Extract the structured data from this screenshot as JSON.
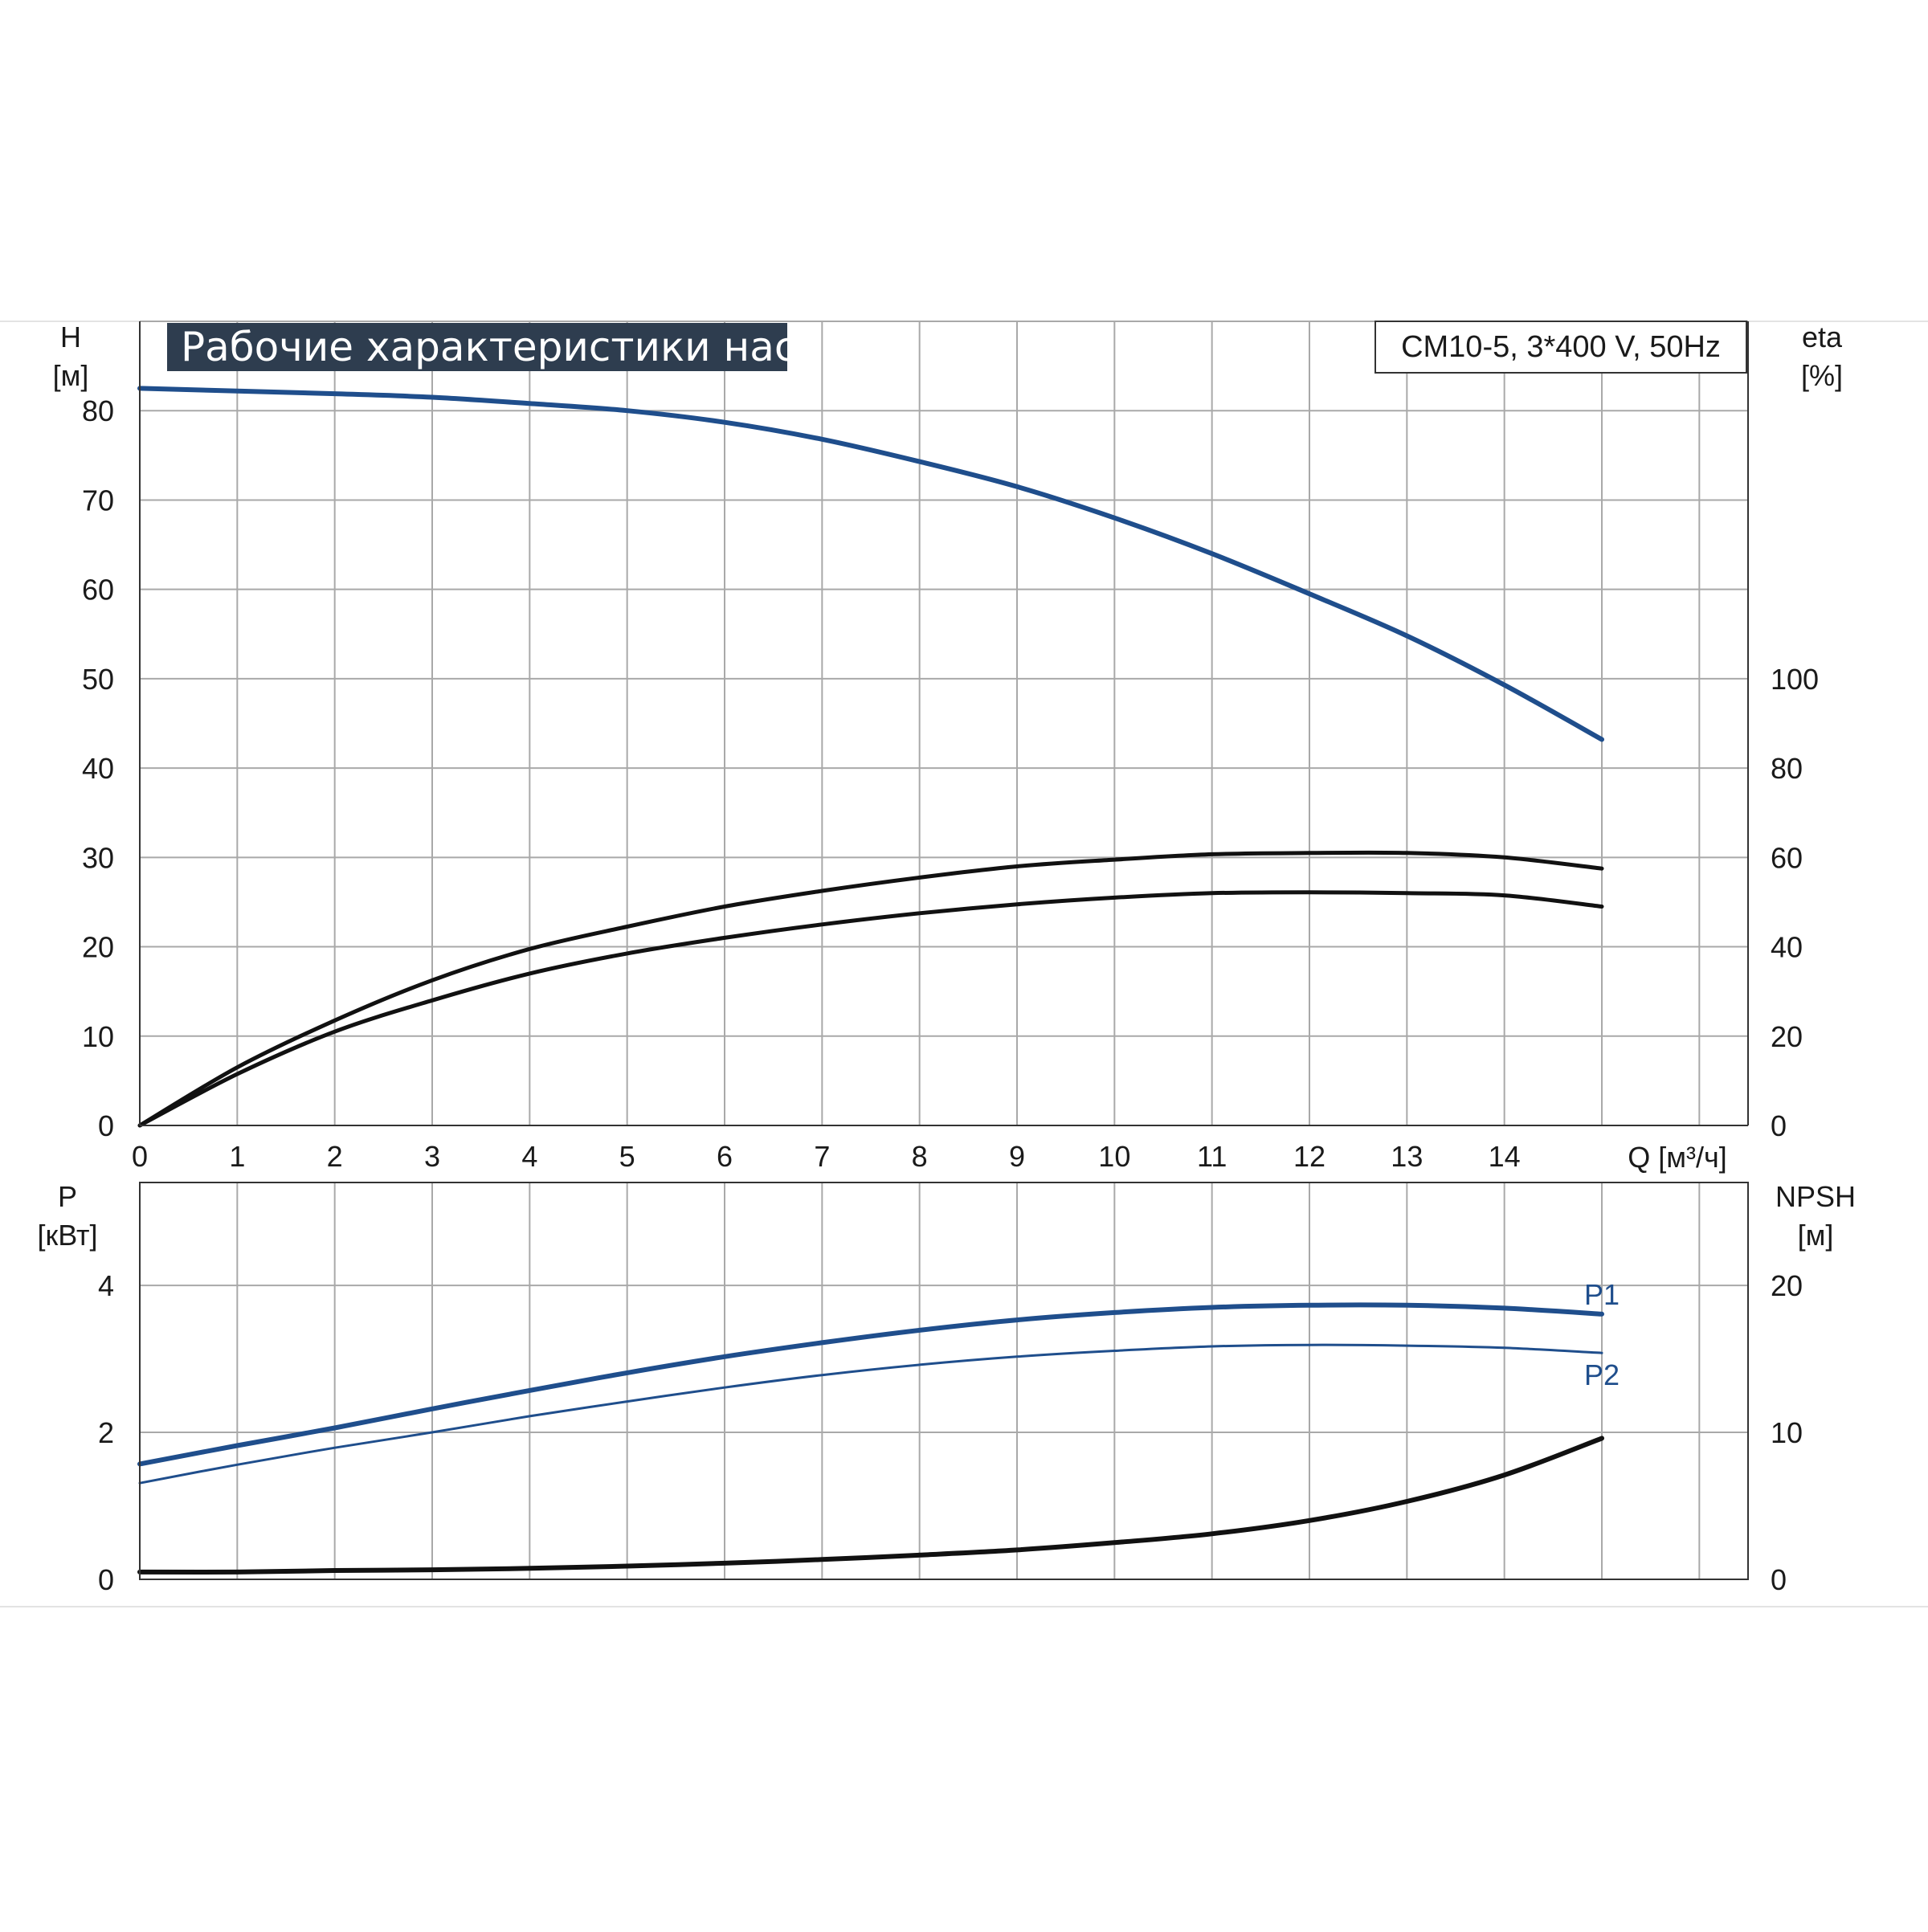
{
  "title": "Рабочие характеристики насоса",
  "model": "CM10-5, 3*400 V, 50Hz",
  "colors": {
    "blue": "#1f4e8c",
    "black": "#111111",
    "grid": "#a9a9a9",
    "title_bg": "#2e3d4f"
  },
  "chart_data": [
    {
      "type": "line",
      "name": "upper",
      "xlabel": "Q [м³/ч]",
      "xlim": [
        0,
        16.5
      ],
      "x_ticks": [
        0,
        1,
        2,
        3,
        4,
        5,
        6,
        7,
        8,
        9,
        10,
        11,
        12,
        13,
        14
      ],
      "left_axis": {
        "label_symbol": "H",
        "label_unit": "[м]",
        "lim": [
          0,
          90
        ],
        "ticks": [
          0,
          10,
          20,
          30,
          40,
          50,
          60,
          70,
          80
        ]
      },
      "right_axis": {
        "label_symbol": "eta",
        "label_unit": "[%]",
        "lim": [
          0,
          180
        ],
        "ticks": [
          0,
          20,
          40,
          60,
          80,
          100
        ]
      },
      "grid": true,
      "series": [
        {
          "axis": "left",
          "color": "#1f4e8c",
          "x": [
            0,
            1,
            2,
            3,
            4,
            5,
            6,
            7,
            8,
            9,
            10,
            11,
            12,
            13,
            14,
            15
          ],
          "y": [
            82.5,
            82.2,
            81.9,
            81.5,
            80.8,
            80.0,
            78.7,
            76.8,
            74.3,
            71.5,
            68.0,
            64.0,
            59.5,
            54.8,
            49.3,
            43.2
          ]
        },
        {
          "axis": "right",
          "color": "#111111",
          "x": [
            0,
            1,
            2,
            3,
            4,
            5,
            6,
            7,
            8,
            9,
            10,
            11,
            12,
            13,
            14,
            15
          ],
          "y": [
            0,
            13,
            23.5,
            32.5,
            39.5,
            44.5,
            49,
            52.5,
            55.5,
            58,
            59.5,
            60.7,
            61,
            61,
            60,
            57.5
          ]
        },
        {
          "axis": "right",
          "color": "#111111",
          "x": [
            0,
            1,
            2,
            3,
            4,
            5,
            6,
            7,
            8,
            9,
            10,
            11,
            12,
            13,
            14,
            15
          ],
          "y": [
            0,
            11.5,
            21,
            28,
            34,
            38.5,
            42,
            45,
            47.5,
            49.5,
            51,
            52,
            52.2,
            52,
            51.5,
            49
          ]
        }
      ]
    },
    {
      "type": "line",
      "name": "lower",
      "xlim": [
        0,
        16.5
      ],
      "left_axis": {
        "label_symbol": "P",
        "label_unit": "[кВт]",
        "lim": [
          0,
          5.4
        ],
        "ticks": [
          0,
          2,
          4
        ]
      },
      "right_axis": {
        "label_symbol": "NPSH",
        "label_unit": "[м]",
        "lim": [
          0,
          27
        ],
        "ticks": [
          0,
          10,
          20
        ]
      },
      "grid": true,
      "series": [
        {
          "name": "P1",
          "axis": "left",
          "color": "#1f4e8c",
          "x": [
            0,
            1,
            2,
            3,
            4,
            5,
            6,
            7,
            8,
            9,
            10,
            11,
            12,
            13,
            14,
            15
          ],
          "y": [
            1.57,
            1.82,
            2.06,
            2.32,
            2.57,
            2.81,
            3.03,
            3.22,
            3.39,
            3.53,
            3.63,
            3.7,
            3.73,
            3.73,
            3.69,
            3.61
          ]
        },
        {
          "name": "P2",
          "axis": "left",
          "color": "#1f4e8c",
          "x": [
            0,
            1,
            2,
            3,
            4,
            5,
            6,
            7,
            8,
            9,
            10,
            11,
            12,
            13,
            14,
            15
          ],
          "y": [
            1.31,
            1.56,
            1.79,
            2.0,
            2.22,
            2.42,
            2.61,
            2.78,
            2.92,
            3.03,
            3.11,
            3.17,
            3.19,
            3.18,
            3.15,
            3.08
          ]
        },
        {
          "axis": "right",
          "color": "#111111",
          "x": [
            0,
            1,
            2,
            3,
            4,
            5,
            6,
            7,
            8,
            9,
            10,
            11,
            12,
            13,
            14,
            15
          ],
          "y": [
            0.5,
            0.5,
            0.6,
            0.65,
            0.75,
            0.9,
            1.1,
            1.35,
            1.65,
            2.0,
            2.5,
            3.1,
            4.0,
            5.3,
            7.1,
            9.6
          ]
        }
      ]
    }
  ]
}
